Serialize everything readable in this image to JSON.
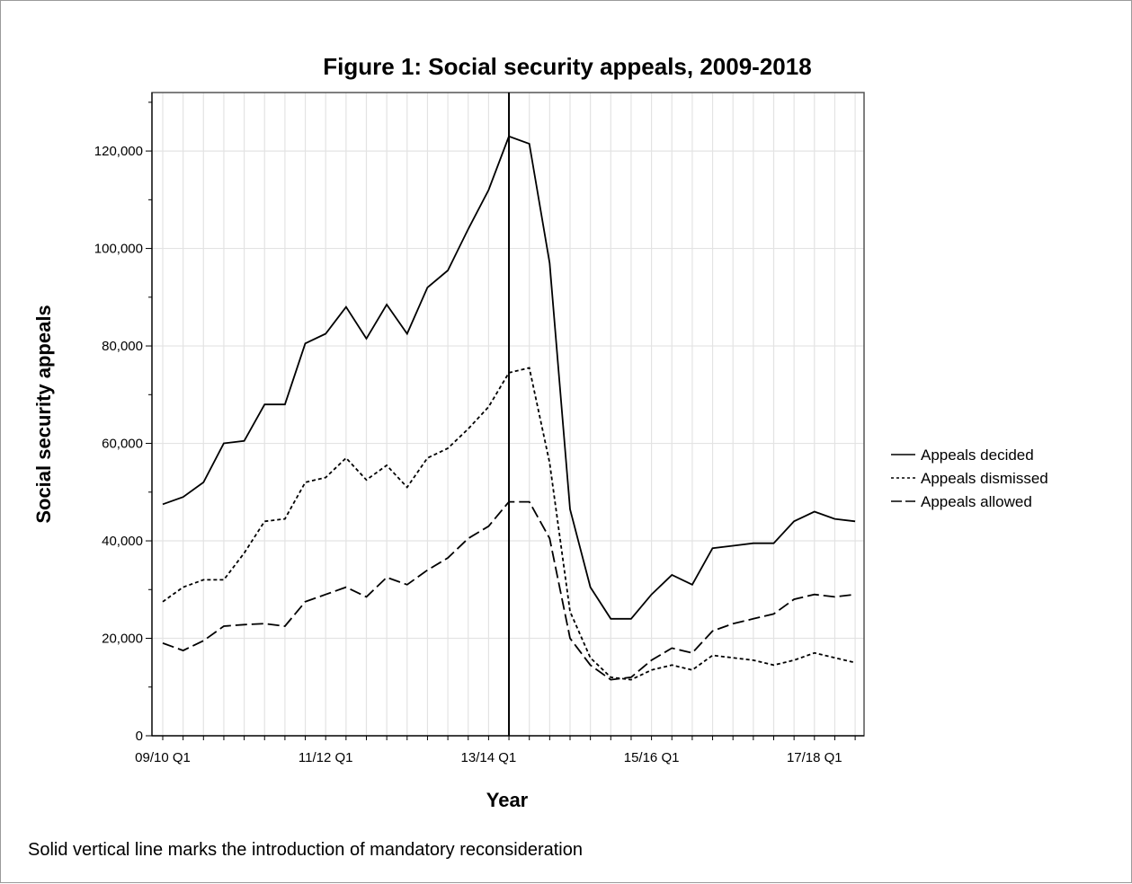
{
  "chart_data": {
    "type": "line",
    "title": "Figure 1: Social security appeals, 2009-2018",
    "xlabel": "Year",
    "ylabel": "Social security appeals",
    "ylim": [
      0,
      132000
    ],
    "yticks": [
      0,
      20000,
      40000,
      60000,
      80000,
      100000,
      120000
    ],
    "ytick_labels": [
      "0",
      "20,000",
      "40,000",
      "60,000",
      "80,000",
      "100,000",
      "120,000"
    ],
    "x": [
      "09/10 Q1",
      "09/10 Q2",
      "09/10 Q3",
      "09/10 Q4",
      "10/11 Q1",
      "10/11 Q2",
      "10/11 Q3",
      "10/11 Q4",
      "11/12 Q1",
      "11/12 Q2",
      "11/12 Q3",
      "11/12 Q4",
      "12/13 Q1",
      "12/13 Q2",
      "12/13 Q3",
      "12/13 Q4",
      "13/14 Q1",
      "13/14 Q2",
      "13/14 Q3",
      "13/14 Q4",
      "14/15 Q1",
      "14/15 Q2",
      "14/15 Q3",
      "14/15 Q4",
      "15/16 Q1",
      "15/16 Q2",
      "15/16 Q3",
      "15/16 Q4",
      "16/17 Q1",
      "16/17 Q2",
      "16/17 Q3",
      "16/17 Q4",
      "17/18 Q1",
      "17/18 Q2",
      "17/18 Q3"
    ],
    "xtick_labels": [
      "09/10 Q1",
      "11/12 Q1",
      "13/14 Q1",
      "15/16 Q1",
      "17/18 Q1"
    ],
    "series": [
      {
        "name": "Appeals decided",
        "style": "solid",
        "values": [
          47500,
          49000,
          52000,
          60000,
          60500,
          68000,
          68000,
          80500,
          82500,
          88000,
          81500,
          88500,
          82500,
          92000,
          95500,
          104000,
          112000,
          123000,
          121500,
          97000,
          46500,
          30500,
          24000,
          24000,
          29000,
          33000,
          31000,
          38500,
          39000,
          39500,
          39500,
          44000,
          46000,
          44500,
          44000
        ]
      },
      {
        "name": "Appeals dismissed",
        "style": "dotted",
        "values": [
          27500,
          30500,
          32000,
          32000,
          37500,
          44000,
          44500,
          52000,
          53000,
          57000,
          52500,
          55500,
          51000,
          57000,
          59000,
          63000,
          67500,
          74500,
          75500,
          56000,
          25500,
          16000,
          12000,
          11500,
          13500,
          14500,
          13500,
          16500,
          16000,
          15500,
          14500,
          15500,
          17000,
          16000,
          15000
        ]
      },
      {
        "name": "Appeals allowed",
        "style": "dashed",
        "values": [
          19000,
          17500,
          19500,
          22500,
          22800,
          23000,
          22500,
          27500,
          29000,
          30500,
          28500,
          32500,
          31000,
          34000,
          36500,
          40500,
          43000,
          48000,
          48000,
          40500,
          20000,
          14500,
          11500,
          12000,
          15500,
          18000,
          17000,
          21500,
          23000,
          24000,
          25000,
          28000,
          29000,
          28500,
          29000
        ]
      }
    ],
    "reference_line": {
      "x": "13/14 Q2"
    },
    "grid": true,
    "legend": "right"
  },
  "footnote": "Solid vertical line marks the introduction of mandatory reconsideration",
  "colors": {
    "line": "#000000",
    "grid": "#e3e3e3",
    "frame": "#9a9a9a"
  }
}
